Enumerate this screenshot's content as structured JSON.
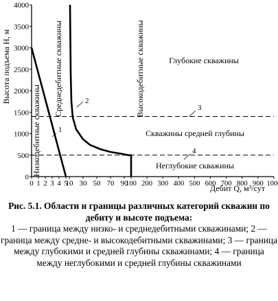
{
  "chart_data": {
    "type": "line",
    "y_axis_label": "Высота подъема H, м",
    "x_axis_label": "Дебит Q, м³/сут",
    "y_ticks": [
      0,
      500,
      1000,
      1500,
      2000,
      2500,
      3000,
      3500,
      4000
    ],
    "ylim": [
      0,
      4000
    ],
    "x_ticks_low": [
      "0",
      "1",
      "2",
      "3",
      "4",
      "5"
    ],
    "x_ticks_mid": [
      "10",
      "30",
      "50",
      "70",
      "90"
    ],
    "x_ticks_high": [
      "100",
      "200",
      "300",
      "400",
      "500",
      "600",
      "700",
      "800",
      "900",
      "1000"
    ],
    "grid": false,
    "region_labels": {
      "low_yield": "Низкодебитные скважины",
      "medium_yield": "Среднедебитные скважины",
      "high_yield": "Высокодебитные скважины",
      "deep": "Глубокие скважины",
      "medium_depth": "Скважины средней глубины",
      "shallow": "Неглубокие скважины"
    },
    "series": [
      {
        "name": "1",
        "style": "solid",
        "points": [
          [
            0,
            3000
          ],
          [
            5,
            0
          ]
        ]
      },
      {
        "name": "2",
        "style": "solid",
        "points": [
          [
            11,
            4000
          ],
          [
            12,
            2400
          ],
          [
            13,
            1750
          ],
          [
            15,
            1380
          ],
          [
            20,
            1100
          ],
          [
            30,
            870
          ],
          [
            40,
            740
          ],
          [
            55,
            640
          ],
          [
            70,
            575
          ],
          [
            85,
            535
          ],
          [
            96,
            500
          ],
          [
            100,
            500
          ],
          [
            100,
            0
          ]
        ]
      },
      {
        "name": "3",
        "style": "dashed",
        "points": [
          [
            0,
            1400
          ],
          [
            1000,
            1400
          ]
        ]
      },
      {
        "name": "4",
        "style": "dashed",
        "points": [
          [
            0,
            500
          ],
          [
            1000,
            500
          ]
        ]
      }
    ]
  },
  "caption": {
    "title": "Рис. 5.1. Области и границы различных категорий скважин по дебиту и высоте подъема:",
    "legend": "1 — граница между низко- и среднедебитными скважинами; 2 — граница между средне- и высокодебитными скважинами; 3 — граница между глубокими и средней глубины скважинами; 4 — граница между неглубокими и средней глубины скважинами"
  }
}
